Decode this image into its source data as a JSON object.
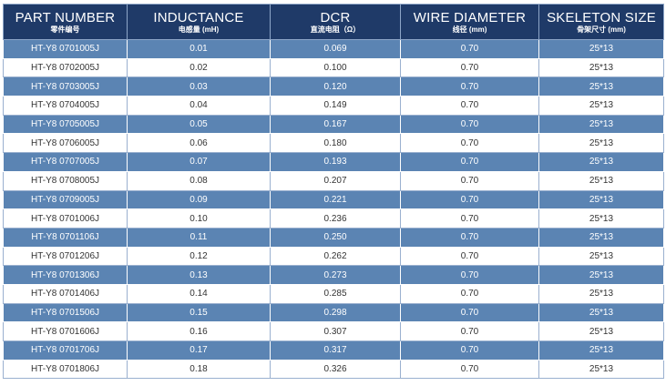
{
  "columns": [
    {
      "title": "PART NUMBER",
      "subtitle": "零件编号"
    },
    {
      "title": "INDUCTANCE",
      "subtitle": "电感量 (mH)"
    },
    {
      "title": "DCR",
      "subtitle": "直流电阻（Ω）"
    },
    {
      "title": "WIRE DIAMETER",
      "subtitle": "线径 (mm)"
    },
    {
      "title": "SKELETON SIZE",
      "subtitle": "骨架尺寸 (mm)"
    }
  ],
  "rows": [
    [
      "HT-Y8 0701005J",
      "0.01",
      "0.069",
      "0.70",
      "25*13"
    ],
    [
      "HT-Y8 0702005J",
      "0.02",
      "0.100",
      "0.70",
      "25*13"
    ],
    [
      "HT-Y8 0703005J",
      "0.03",
      "0.120",
      "0.70",
      "25*13"
    ],
    [
      "HT-Y8 0704005J",
      "0.04",
      "0.149",
      "0.70",
      "25*13"
    ],
    [
      "HT-Y8 0705005J",
      "0.05",
      "0.167",
      "0.70",
      "25*13"
    ],
    [
      "HT-Y8 0706005J",
      "0.06",
      "0.180",
      "0.70",
      "25*13"
    ],
    [
      "HT-Y8 0707005J",
      "0.07",
      "0.193",
      "0.70",
      "25*13"
    ],
    [
      "HT-Y8 0708005J",
      "0.08",
      "0.207",
      "0.70",
      "25*13"
    ],
    [
      "HT-Y8 0709005J",
      "0.09",
      "0.221",
      "0.70",
      "25*13"
    ],
    [
      "HT-Y8 0701006J",
      "0.10",
      "0.236",
      "0.70",
      "25*13"
    ],
    [
      "HT-Y8 0701106J",
      "0.11",
      "0.250",
      "0.70",
      "25*13"
    ],
    [
      "HT-Y8 0701206J",
      "0.12",
      "0.262",
      "0.70",
      "25*13"
    ],
    [
      "HT-Y8 0701306J",
      "0.13",
      "0.273",
      "0.70",
      "25*13"
    ],
    [
      "HT-Y8 0701406J",
      "0.14",
      "0.285",
      "0.70",
      "25*13"
    ],
    [
      "HT-Y8 0701506J",
      "0.15",
      "0.298",
      "0.70",
      "25*13"
    ],
    [
      "HT-Y8 0701606J",
      "0.16",
      "0.307",
      "0.70",
      "25*13"
    ],
    [
      "HT-Y8 0701706J",
      "0.17",
      "0.317",
      "0.70",
      "25*13"
    ],
    [
      "HT-Y8 0701806J",
      "0.18",
      "0.326",
      "0.70",
      "25*13"
    ]
  ],
  "colors": {
    "header": "#1f3a68",
    "stripe": "#5b84b3",
    "plain": "#ffffff"
  }
}
